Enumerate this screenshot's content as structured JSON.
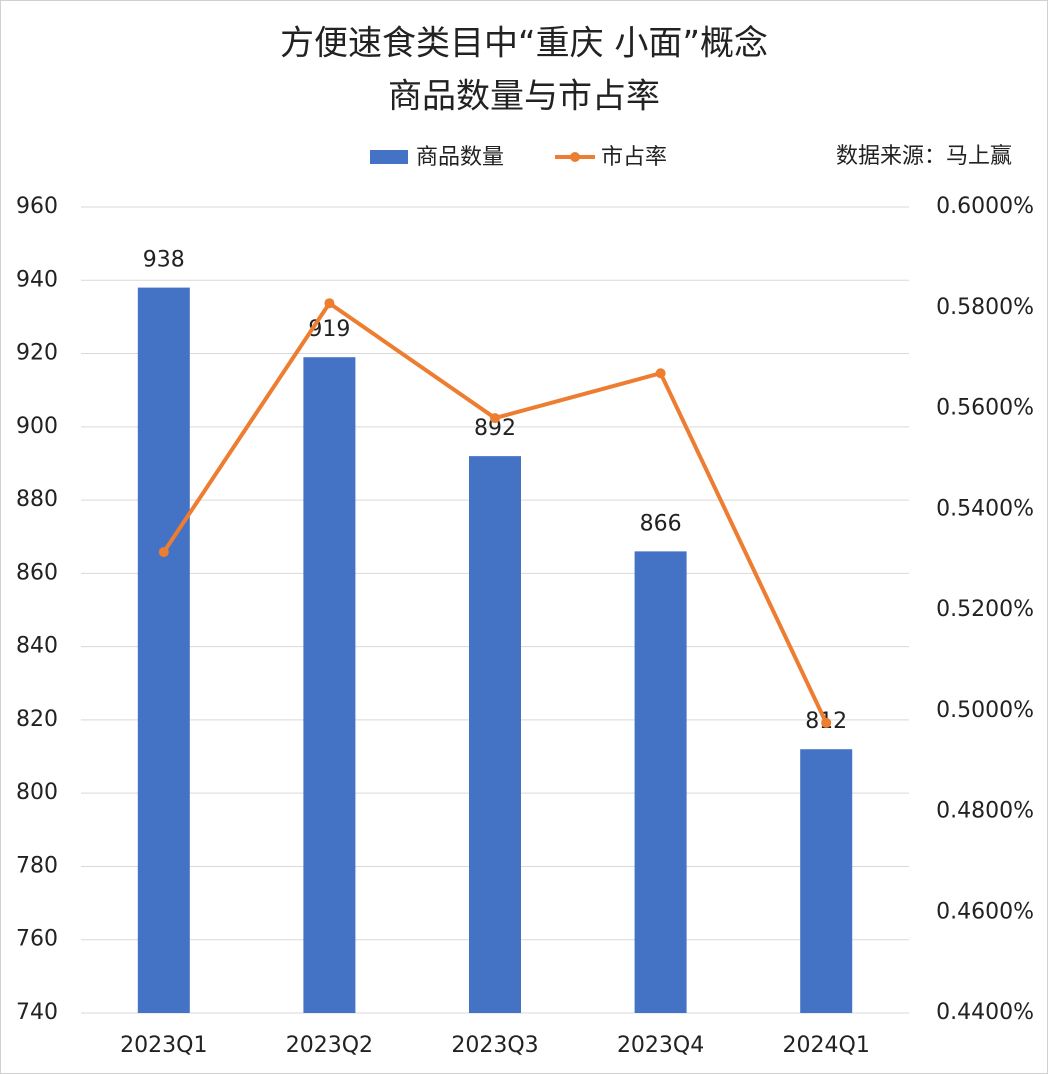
{
  "chart_data": {
    "type": "bar_line",
    "title": [
      "方便速食类目中“重庆 小面”概念",
      "商品数量与市占率"
    ],
    "source": "数据来源：马上赢",
    "categories": [
      "2023Q1",
      "2023Q2",
      "2023Q3",
      "2023Q4",
      "2024Q1"
    ],
    "series": [
      {
        "name": "商品数量",
        "type": "bar",
        "color": "#4472c4",
        "values": [
          938,
          919,
          892,
          866,
          812
        ]
      },
      {
        "name": "市占率",
        "type": "line",
        "color": "#ed7d31",
        "axis": "y2",
        "values": [
          0.5315,
          0.5809,
          0.5581,
          0.567,
          0.4976
        ]
      }
    ],
    "ylim": [
      740,
      960
    ],
    "yticks": [
      740,
      760,
      780,
      800,
      820,
      840,
      860,
      880,
      900,
      920,
      940,
      960
    ],
    "y2lim": [
      0.44,
      0.6
    ],
    "y2ticks": [
      {
        "value": 0.44,
        "label": "0.4400%"
      },
      {
        "value": 0.46,
        "label": "0.4600%"
      },
      {
        "value": 0.48,
        "label": "0.4800%"
      },
      {
        "value": 0.5,
        "label": "0.5000%"
      },
      {
        "value": 0.52,
        "label": "0.5200%"
      },
      {
        "value": 0.54,
        "label": "0.5400%"
      },
      {
        "value": 0.56,
        "label": "0.5600%"
      },
      {
        "value": 0.58,
        "label": "0.5800%"
      },
      {
        "value": 0.6,
        "label": "0.6000%"
      }
    ],
    "grid": true,
    "legend": "top"
  }
}
